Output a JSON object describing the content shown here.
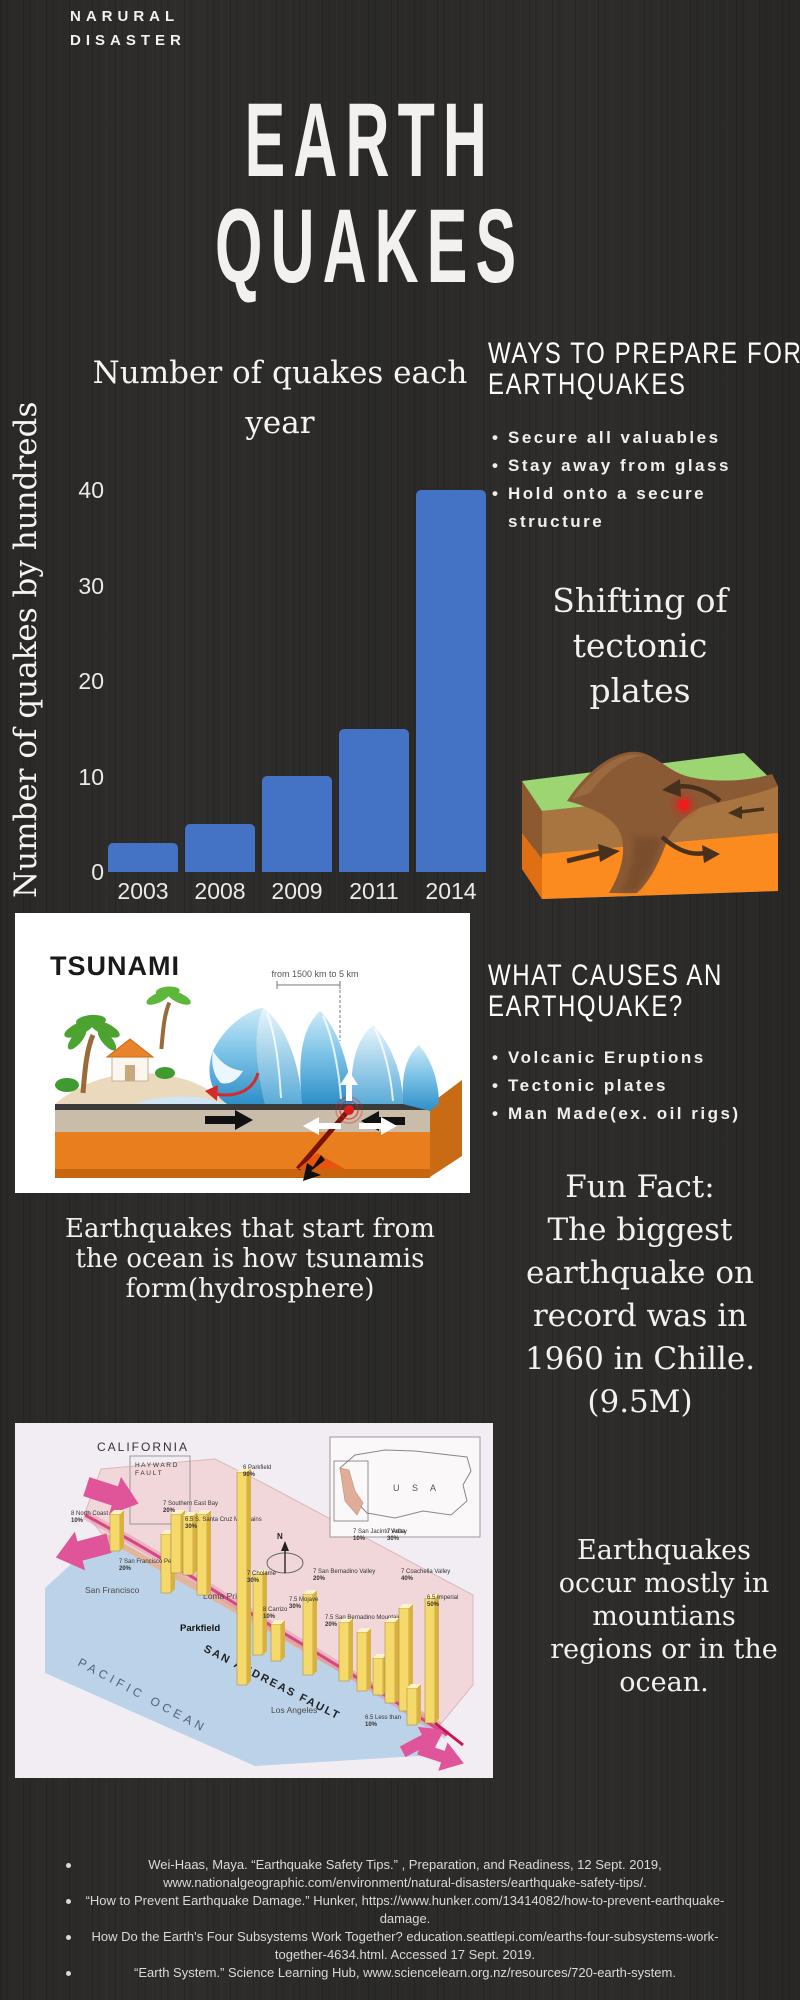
{
  "eyebrow": {
    "line1": "NARURAL",
    "line2": "DISASTER"
  },
  "title": {
    "line1": "EARTH",
    "line2": "QUAKES"
  },
  "chart_data": {
    "type": "bar",
    "title": "Number of quakes each year",
    "title_lines": [
      "Number of quakes each",
      "year"
    ],
    "ylabel": "Number of quakes by hundreds",
    "xlabel": "",
    "categories": [
      "2003",
      "2008",
      "2009",
      "2011",
      "2014"
    ],
    "values": [
      3,
      5,
      10,
      15,
      40
    ],
    "yticks": [
      0,
      10,
      20,
      30,
      40
    ],
    "ylim": [
      0,
      42
    ],
    "bar_color": "#4472c4",
    "grid": false,
    "legend": "none"
  },
  "prepare": {
    "heading_lines": [
      "WAYS TO PREPARE FOR",
      "EARTHQUAKES"
    ],
    "items": [
      "Secure all valuables",
      "Stay away from glass",
      "Hold onto a secure structure"
    ]
  },
  "tectonic": {
    "heading_lines": [
      "Shifting of",
      "tectonic",
      "plates"
    ]
  },
  "tsunami_image": {
    "label": "TSUNAMI",
    "annotation": "from 1500 km to 5 km"
  },
  "tsunami_caption": {
    "lines": [
      "Earthquakes that start from",
      "the ocean is how tsunamis",
      "form(hydrosphere)"
    ]
  },
  "causes": {
    "heading_lines": [
      "WHAT CAUSES AN",
      "EARTHQUAKE?"
    ],
    "items": [
      "Volcanic Eruptions",
      "Tectonic plates",
      "Man Made(ex. oil rigs)"
    ]
  },
  "funfact": {
    "lines": [
      "Fun Fact:",
      "The biggest",
      "earthquake on",
      "record was in",
      "1960 in Chille.",
      "(9.5M)"
    ]
  },
  "map_image": {
    "title": "CALIFORNIA",
    "hayward_line1": "H A Y W A R D",
    "hayward_line2": "F A U L T",
    "inset_label": "U S A",
    "ocean_label": "PACIFIC OCEAN",
    "fault_label": "SAN ANDREAS FAULT",
    "compass": "N",
    "cities": [
      "San Francisco",
      "Loma Prieta",
      "Parkfield",
      "Los Angeles"
    ],
    "sites": [
      {
        "mag": "8",
        "name": "North Coast",
        "prob": "10%"
      },
      {
        "mag": "7",
        "name": "San Francisco Peninsula",
        "prob": "20%"
      },
      {
        "mag": "7",
        "name": "Northern East Bay",
        "prob": "20%"
      },
      {
        "mag": "7",
        "name": "Southern East Bay",
        "prob": "20%"
      },
      {
        "mag": "6.5",
        "name": "S. Santa Cruz Mountains",
        "prob": "30%"
      },
      {
        "mag": "6",
        "name": "Parkfield",
        "prob": "90%"
      },
      {
        "mag": "7",
        "name": "Cholame",
        "prob": "30%"
      },
      {
        "mag": "8",
        "name": "Carrizo",
        "prob": "10%"
      },
      {
        "mag": "7.5",
        "name": "Mojave",
        "prob": "30%"
      },
      {
        "mag": "7",
        "name": "San Bernadino Valley",
        "prob": "20%"
      },
      {
        "mag": "7.5",
        "name": "San Bernadino Mountains",
        "prob": "20%"
      },
      {
        "mag": "7",
        "name": "San Jacinto Valley",
        "prob": "10%"
      },
      {
        "mag": "7",
        "name": "Anza",
        "prob": "30%"
      },
      {
        "mag": "7",
        "name": "Coachella Valley",
        "prob": "40%"
      },
      {
        "mag": "6.5",
        "name": "Imperial",
        "prob": "50%"
      },
      {
        "mag": "6.5",
        "name": "Less than",
        "prob": "10%"
      }
    ]
  },
  "mountains_note": {
    "lines": [
      "Earthquakes",
      "occur mostly in",
      "mountians",
      "regions or in the",
      "ocean."
    ]
  },
  "citations": [
    {
      "line1": "Wei-Haas, Maya. “Earthquake Safety Tips.” , Preparation, and Readiness, 12 Sept. 2019,",
      "line2": "www.nationalgeographic.com/environment/natural-disasters/earthquake-safety-tips/."
    },
    {
      "line1": "“How to Prevent Earthquake Damage.” Hunker, https://www.hunker.com/13414082/how-to-prevent-earthquake-",
      "line2": "damage."
    },
    {
      "line1": "How Do the Earth's Four Subsystems Work Together? education.seattlepi.com/earths-four-subsystems-work-",
      "line2": "together-4634.html. Accessed 17 Sept. 2019."
    },
    {
      "line1": "“Earth System.” Science Learning Hub, www.sciencelearn.org.nz/resources/720-earth-system."
    }
  ],
  "colors": {
    "background": "#2e2d2b",
    "accent_blue": "#4472c4",
    "text": "#f2f1ef"
  }
}
